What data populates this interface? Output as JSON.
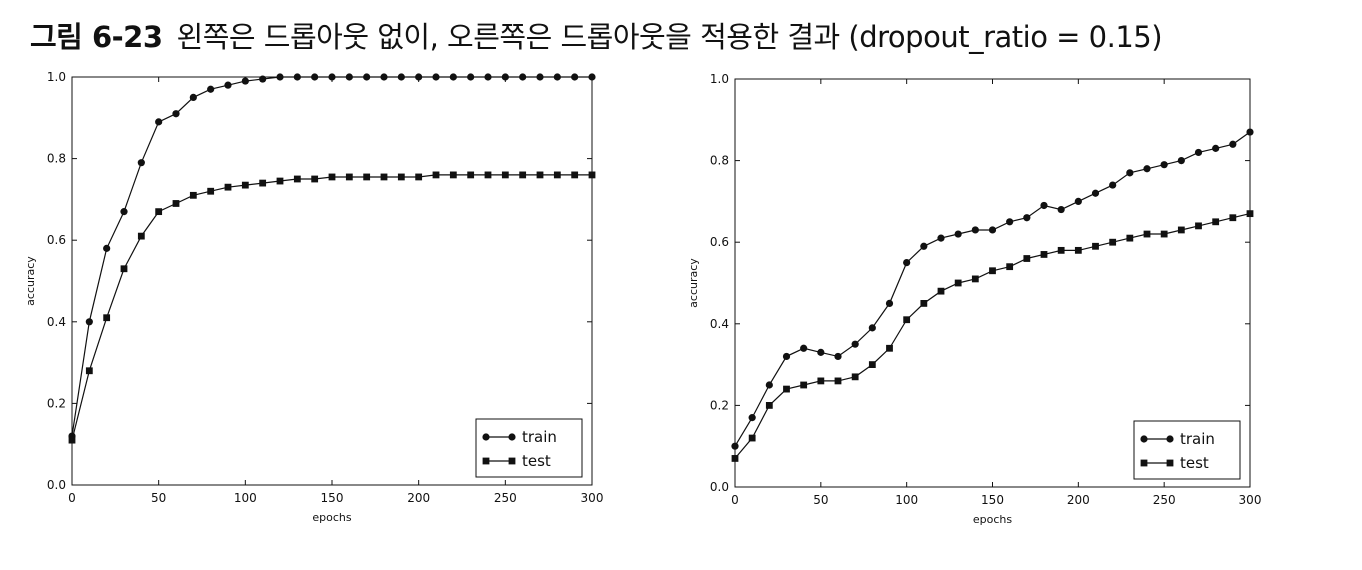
{
  "caption": {
    "label": "그림 6-23",
    "text": "왼쪽은 드롭아웃 없이, 오른쪽은 드롭아웃을 적용한 결과 (dropout_ratio = 0.15)"
  },
  "chart_data": [
    {
      "type": "line",
      "xlabel": "epochs",
      "ylabel": "accuracy",
      "xlim": [
        0,
        300
      ],
      "ylim": [
        0.0,
        1.0
      ],
      "xticks": [
        0,
        50,
        100,
        150,
        200,
        250,
        300
      ],
      "yticks": [
        0.0,
        0.2,
        0.4,
        0.6,
        0.8,
        1.0
      ],
      "legend_position": "lower-right",
      "series": [
        {
          "name": "train",
          "marker": "circle",
          "x": [
            0,
            10,
            20,
            30,
            40,
            50,
            60,
            70,
            80,
            90,
            100,
            110,
            120,
            130,
            140,
            150,
            160,
            170,
            180,
            190,
            200,
            210,
            220,
            230,
            240,
            250,
            260,
            270,
            280,
            290,
            300
          ],
          "y": [
            0.12,
            0.4,
            0.58,
            0.67,
            0.79,
            0.89,
            0.91,
            0.95,
            0.97,
            0.98,
            0.99,
            0.995,
            1.0,
            1.0,
            1.0,
            1.0,
            1.0,
            1.0,
            1.0,
            1.0,
            1.0,
            1.0,
            1.0,
            1.0,
            1.0,
            1.0,
            1.0,
            1.0,
            1.0,
            1.0,
            1.0
          ]
        },
        {
          "name": "test",
          "marker": "square",
          "x": [
            0,
            10,
            20,
            30,
            40,
            50,
            60,
            70,
            80,
            90,
            100,
            110,
            120,
            130,
            140,
            150,
            160,
            170,
            180,
            190,
            200,
            210,
            220,
            230,
            240,
            250,
            260,
            270,
            280,
            290,
            300
          ],
          "y": [
            0.11,
            0.28,
            0.41,
            0.53,
            0.61,
            0.67,
            0.69,
            0.71,
            0.72,
            0.73,
            0.735,
            0.74,
            0.745,
            0.75,
            0.75,
            0.755,
            0.755,
            0.755,
            0.755,
            0.755,
            0.755,
            0.76,
            0.76,
            0.76,
            0.76,
            0.76,
            0.76,
            0.76,
            0.76,
            0.76,
            0.76
          ]
        }
      ]
    },
    {
      "type": "line",
      "xlabel": "epochs",
      "ylabel": "accuracy",
      "xlim": [
        0,
        300
      ],
      "ylim": [
        0.0,
        1.0
      ],
      "xticks": [
        0,
        50,
        100,
        150,
        200,
        250,
        300
      ],
      "yticks": [
        0.0,
        0.2,
        0.4,
        0.6,
        0.8,
        1.0
      ],
      "legend_position": "lower-right",
      "series": [
        {
          "name": "train",
          "marker": "circle",
          "x": [
            0,
            10,
            20,
            30,
            40,
            50,
            60,
            70,
            80,
            90,
            100,
            110,
            120,
            130,
            140,
            150,
            160,
            170,
            180,
            190,
            200,
            210,
            220,
            230,
            240,
            250,
            260,
            270,
            280,
            290,
            300
          ],
          "y": [
            0.1,
            0.17,
            0.25,
            0.32,
            0.34,
            0.33,
            0.32,
            0.35,
            0.39,
            0.45,
            0.55,
            0.59,
            0.61,
            0.62,
            0.63,
            0.63,
            0.65,
            0.66,
            0.69,
            0.68,
            0.7,
            0.72,
            0.74,
            0.77,
            0.78,
            0.79,
            0.8,
            0.82,
            0.83,
            0.84,
            0.87
          ]
        },
        {
          "name": "test",
          "marker": "square",
          "x": [
            0,
            10,
            20,
            30,
            40,
            50,
            60,
            70,
            80,
            90,
            100,
            110,
            120,
            130,
            140,
            150,
            160,
            170,
            180,
            190,
            200,
            210,
            220,
            230,
            240,
            250,
            260,
            270,
            280,
            290,
            300
          ],
          "y": [
            0.07,
            0.12,
            0.2,
            0.24,
            0.25,
            0.26,
            0.26,
            0.27,
            0.3,
            0.34,
            0.41,
            0.45,
            0.48,
            0.5,
            0.51,
            0.53,
            0.54,
            0.56,
            0.57,
            0.58,
            0.58,
            0.59,
            0.6,
            0.61,
            0.62,
            0.62,
            0.63,
            0.64,
            0.65,
            0.66,
            0.67
          ]
        }
      ]
    }
  ]
}
